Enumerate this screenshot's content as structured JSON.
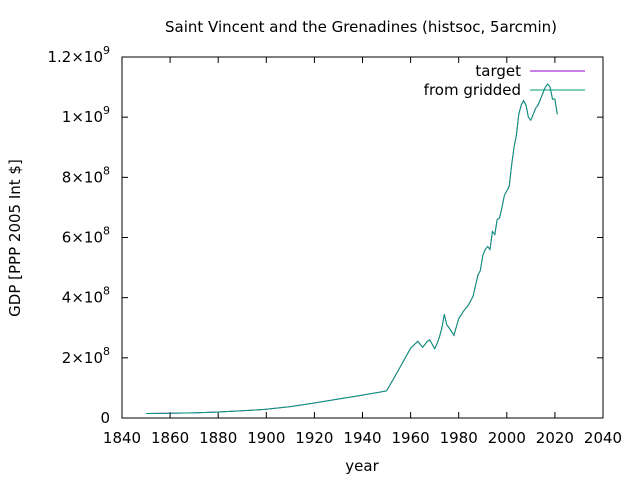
{
  "chart_data": {
    "type": "line",
    "title": "Saint Vincent and the Grenadines (histsoc, 5arcmin)",
    "xlabel": "year",
    "ylabel": "GDP [PPP 2005 Int $]",
    "xlim": [
      1840,
      2040
    ],
    "ylim": [
      0,
      1200000000
    ],
    "xticks": [
      {
        "value": 1840,
        "label": "1840"
      },
      {
        "value": 1860,
        "label": "1860"
      },
      {
        "value": 1880,
        "label": "1880"
      },
      {
        "value": 1900,
        "label": "1900"
      },
      {
        "value": 1920,
        "label": "1920"
      },
      {
        "value": 1940,
        "label": "1940"
      },
      {
        "value": 1960,
        "label": "1960"
      },
      {
        "value": 1980,
        "label": "1980"
      },
      {
        "value": 2000,
        "label": "2000"
      },
      {
        "value": 2020,
        "label": "2020"
      },
      {
        "value": 2040,
        "label": "2040"
      }
    ],
    "yticks": [
      {
        "value": 0,
        "label": "0",
        "sup": ""
      },
      {
        "value": 200000000,
        "label": "2×10",
        "sup": "8"
      },
      {
        "value": 400000000,
        "label": "4×10",
        "sup": "8"
      },
      {
        "value": 600000000,
        "label": "6×10",
        "sup": "8"
      },
      {
        "value": 800000000,
        "label": "8×10",
        "sup": "8"
      },
      {
        "value": 1000000000,
        "label": "1×10",
        "sup": "9"
      },
      {
        "value": 1200000000,
        "label": "1.2×10",
        "sup": "9"
      }
    ],
    "grid": false,
    "legend_position": "top-right",
    "series": [
      {
        "name": "target",
        "color": "#9400d3",
        "x": [
          1850,
          1860,
          1870,
          1880,
          1890,
          1900,
          1910,
          1920,
          1930,
          1940,
          1950,
          1955,
          1960,
          1963,
          1965,
          1967,
          1968,
          1970,
          1971,
          1972,
          1973,
          1974,
          1975,
          1976,
          1978,
          1980,
          1982,
          1984,
          1986,
          1987,
          1988,
          1989,
          1990,
          1991,
          1992,
          1993,
          1994,
          1995,
          1996,
          1997,
          1998,
          1999,
          2000,
          2001,
          2002,
          2003,
          2004,
          2005,
          2006,
          2007,
          2008,
          2009,
          2010,
          2011,
          2012,
          2013,
          2014,
          2015,
          2016,
          2017,
          2018,
          2019,
          2020,
          2021
        ],
        "y": [
          15000000,
          15500000,
          17000000,
          20000000,
          24000000,
          29000000,
          38000000,
          50000000,
          63000000,
          76000000,
          90000000,
          160000000,
          232000000,
          255000000,
          235000000,
          255000000,
          260000000,
          230000000,
          248000000,
          270000000,
          300000000,
          345000000,
          310000000,
          300000000,
          275000000,
          330000000,
          355000000,
          375000000,
          405000000,
          440000000,
          475000000,
          490000000,
          540000000,
          560000000,
          570000000,
          560000000,
          620000000,
          610000000,
          660000000,
          665000000,
          700000000,
          740000000,
          755000000,
          770000000,
          840000000,
          900000000,
          940000000,
          1010000000,
          1040000000,
          1055000000,
          1040000000,
          1000000000,
          990000000,
          1010000000,
          1030000000,
          1040000000,
          1060000000,
          1080000000,
          1100000000,
          1110000000,
          1100000000,
          1060000000,
          1060000000,
          1010000000
        ]
      },
      {
        "name": "from gridded",
        "color": "#009e73",
        "x": [
          1850,
          1860,
          1870,
          1880,
          1890,
          1900,
          1910,
          1920,
          1930,
          1940,
          1950,
          1955,
          1960,
          1963,
          1965,
          1967,
          1968,
          1970,
          1971,
          1972,
          1973,
          1974,
          1975,
          1976,
          1978,
          1980,
          1982,
          1984,
          1986,
          1987,
          1988,
          1989,
          1990,
          1991,
          1992,
          1993,
          1994,
          1995,
          1996,
          1997,
          1998,
          1999,
          2000,
          2001,
          2002,
          2003,
          2004,
          2005,
          2006,
          2007,
          2008,
          2009,
          2010,
          2011,
          2012,
          2013,
          2014,
          2015,
          2016,
          2017,
          2018,
          2019,
          2020,
          2021
        ],
        "y": [
          15000000,
          15500000,
          17000000,
          20000000,
          24000000,
          29000000,
          38000000,
          50000000,
          63000000,
          76000000,
          90000000,
          160000000,
          232000000,
          255000000,
          235000000,
          255000000,
          260000000,
          230000000,
          248000000,
          270000000,
          300000000,
          345000000,
          310000000,
          300000000,
          275000000,
          330000000,
          355000000,
          375000000,
          405000000,
          440000000,
          475000000,
          490000000,
          540000000,
          560000000,
          570000000,
          560000000,
          620000000,
          610000000,
          660000000,
          665000000,
          700000000,
          740000000,
          755000000,
          770000000,
          840000000,
          900000000,
          940000000,
          1010000000,
          1040000000,
          1055000000,
          1040000000,
          1000000000,
          990000000,
          1010000000,
          1030000000,
          1040000000,
          1060000000,
          1080000000,
          1100000000,
          1110000000,
          1100000000,
          1060000000,
          1060000000,
          1010000000
        ]
      }
    ]
  }
}
